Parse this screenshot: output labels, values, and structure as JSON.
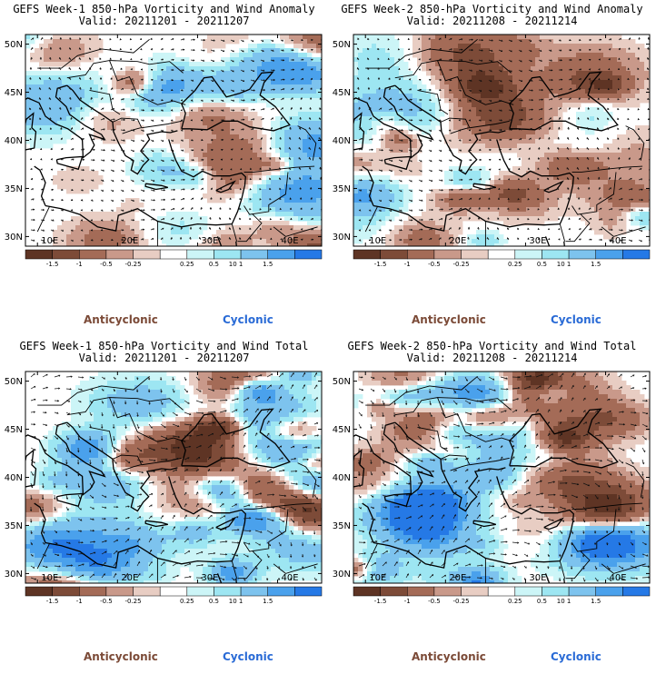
{
  "panels": [
    {
      "title": "GEFS Week-1 850-hPa Vorticity and Wind Anomaly",
      "valid": "Valid: 20211201 - 20211207",
      "kind": "anomaly"
    },
    {
      "title": "GEFS Week-2 850-hPa Vorticity and Wind Anomaly",
      "valid": "Valid: 20211208 - 20211214",
      "kind": "anomaly"
    },
    {
      "title": "GEFS Week-1 850-hPa Vorticity and Wind Total",
      "valid": "Valid: 20211201 - 20211207",
      "kind": "total"
    },
    {
      "title": "GEFS Week-2 850-hPa Vorticity and Wind Total",
      "valid": "Valid: 20211208 - 20211214",
      "kind": "total"
    }
  ],
  "axes": {
    "lon_ticks": [
      "10E",
      "20E",
      "30E",
      "40E"
    ],
    "lat_ticks": [
      "50N",
      "45N",
      "40N",
      "35N",
      "30N"
    ]
  },
  "colorbar": {
    "labels": [
      "-1.5",
      "-1",
      "-0.5",
      "-0.25",
      "0.25",
      "0.5",
      "1",
      "1.5"
    ],
    "exponent": "10",
    "colors": [
      "#5e3424",
      "#7d4b38",
      "#a46b57",
      "#c9998a",
      "#e8cdc3",
      "#ffffff",
      "#ccf5f7",
      "#9de6f2",
      "#7dc3ee",
      "#4aa1ec",
      "#2579e6"
    ]
  },
  "legend": {
    "anticyclonic": "Anticyclonic",
    "cyclonic": "Cyclonic"
  }
}
